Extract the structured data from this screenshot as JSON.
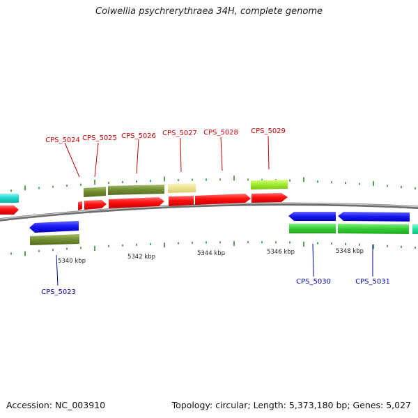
{
  "title": "Colwellia psychrerythraea 34H, complete genome",
  "footer": {
    "accession": "Accession: NC_003910",
    "summary": "Topology: circular; Length: 5,373,180 bp; Genes: 5,027"
  },
  "colors": {
    "forward_label": "#cc0000",
    "reverse_label": "#0000aa",
    "backbone": "#888888",
    "tick": "#2e8b2e"
  },
  "scale": {
    "unit": "kbp",
    "labels": [
      "5340 kbp",
      "5342 kbp",
      "5344 kbp",
      "5346 kbp",
      "5348 kbp"
    ]
  },
  "gene_labels": {
    "forward": [
      "CPS_5024",
      "CPS_5025",
      "CPS_5026",
      "CPS_5027",
      "CPS_5028",
      "CPS_5029"
    ],
    "reverse": [
      "CPS_5023",
      "CPS_5030",
      "CPS_5031"
    ]
  }
}
